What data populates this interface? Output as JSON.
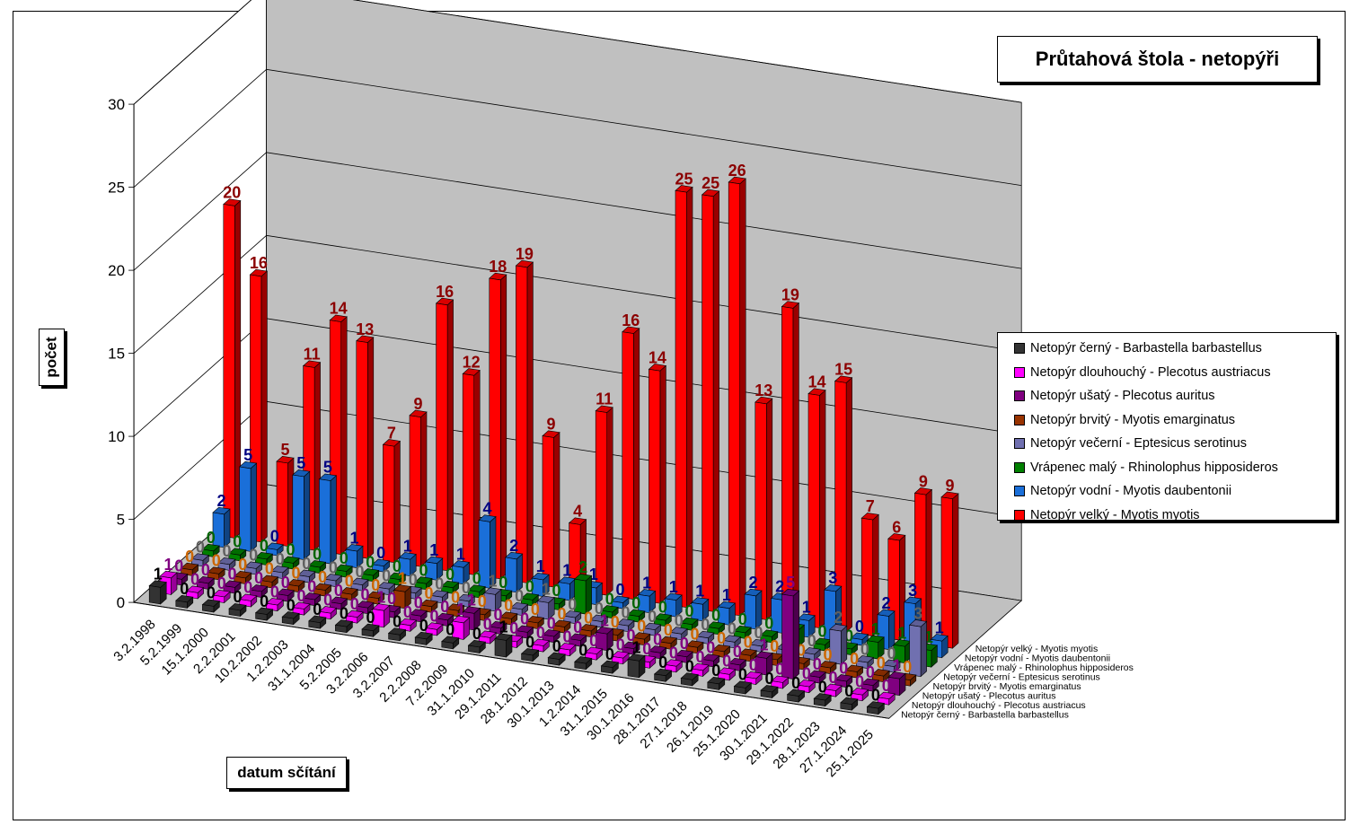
{
  "chart_data": {
    "type": "bar",
    "title": "Průtahová štola - netopýři",
    "xlabel": "datum sčítání",
    "ylabel": "počet",
    "ylim": [
      0,
      30
    ],
    "yticks": [
      "0",
      "5",
      "10",
      "15",
      "20",
      "25",
      "30"
    ],
    "grid": true,
    "legend_position": "right",
    "categories": [
      "3.2.1998",
      "5.2.1999",
      "15.1.2000",
      "2.2.2001",
      "10.2.2002",
      "1.2.2003",
      "31.1.2004",
      "5.2.2005",
      "3.2.2006",
      "3.2.2007",
      "2.2.2008",
      "7.2.2009",
      "31.1.2010",
      "29.1.2011",
      "28.1.2012",
      "30.1.2013",
      "1.2.2014",
      "31.1.2015",
      "30.1.2016",
      "28.1.2017",
      "27.1.2018",
      "26.1.2019",
      "25.1.2020",
      "30.1.2021",
      "29.1.2022",
      "28.1.2023",
      "27.1.2024",
      "25.1.2025"
    ],
    "series": [
      {
        "name": "Netopýr černý - Barbastella barbastellus",
        "color": "#333333",
        "label_color": "#000000",
        "values": [
          1,
          0,
          0,
          0,
          0,
          0,
          0,
          0,
          0,
          0,
          0,
          0,
          0,
          1,
          0,
          0,
          0,
          0,
          1,
          0,
          0,
          0,
          0,
          0,
          0,
          0,
          0,
          0
        ]
      },
      {
        "name": "Netopýr dlouhouchý - Plecotus austriacus",
        "color": "#ff00ff",
        "label_color": "#800080",
        "values": [
          1,
          0,
          0,
          0,
          0,
          0,
          0,
          0,
          1,
          0,
          0,
          1,
          0,
          0,
          0,
          0,
          0,
          0,
          0,
          0,
          0,
          0,
          0,
          0,
          0,
          0,
          0,
          0
        ]
      },
      {
        "name": "Netopýr ušatý - Plecotus auritus",
        "color": "#800080",
        "label_color": "#800080",
        "values": [
          0,
          0,
          0,
          0,
          0,
          0,
          0,
          0,
          0,
          0,
          0,
          1,
          0,
          0,
          0,
          0,
          1,
          0,
          0,
          0,
          0,
          0,
          1,
          5,
          0,
          0,
          0,
          1
        ]
      },
      {
        "name": "Netopýr brvitý - Myotis emarginatus",
        "color": "#993300",
        "label_color": "#cc6600",
        "values": [
          0,
          0,
          0,
          0,
          0,
          0,
          0,
          0,
          1,
          0,
          0,
          0,
          0,
          0,
          0,
          0,
          0,
          0,
          0,
          0,
          0,
          0,
          0,
          0,
          0,
          0,
          0,
          0
        ]
      },
      {
        "name": "Netopýr večerní - Eptesicus serotinus",
        "color": "#7070b0",
        "label_color": "#606060",
        "values": [
          0,
          0,
          0,
          0,
          0,
          0,
          0,
          0,
          0,
          0,
          0,
          1,
          0,
          1,
          0,
          0,
          0,
          0,
          0,
          0,
          0,
          0,
          0,
          0,
          2,
          0,
          0,
          3
        ]
      },
      {
        "name": "Vrápenec malý - Rhinolophus hipposideros",
        "color": "#008000",
        "label_color": "#006400",
        "values": [
          0,
          0,
          0,
          0,
          0,
          0,
          0,
          0,
          0,
          0,
          0,
          0,
          0,
          0,
          2,
          0,
          0,
          0,
          0,
          0,
          0,
          0,
          1,
          0,
          0,
          1,
          1,
          1
        ]
      },
      {
        "name": "Netopýr vodní - Myotis daubentonii",
        "color": "#1a6fd9",
        "label_color": "#000080",
        "values": [
          2,
          5,
          0,
          5,
          5,
          1,
          0,
          1,
          1,
          1,
          4,
          2,
          1,
          1,
          1,
          0,
          1,
          1,
          1,
          1,
          2,
          2,
          1,
          3,
          0,
          2,
          3,
          1
        ]
      },
      {
        "name": "Netopýr velký - Myotis myotis",
        "color": "#ff0000",
        "label_color": "#8b0000",
        "values": [
          20,
          16,
          5,
          11,
          14,
          13,
          7,
          9,
          16,
          12,
          18,
          19,
          9,
          4,
          11,
          16,
          14,
          25,
          25,
          26,
          13,
          19,
          14,
          15,
          7,
          6,
          9,
          9
        ]
      }
    ]
  }
}
